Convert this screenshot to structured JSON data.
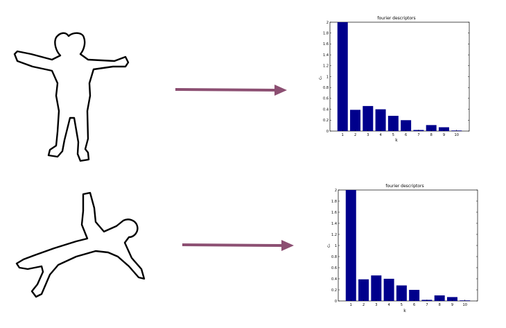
{
  "colors": {
    "background": "#ffffff",
    "arrow": "#8c4f72",
    "bar": "#00008c",
    "outline": "#000000"
  },
  "figures": {
    "top": {
      "icon": "human-silhouette-upright-outline"
    },
    "bottom": {
      "icon": "human-silhouette-rotated-outline"
    }
  },
  "chart_data": [
    {
      "type": "bar",
      "title": "fourier descriptors",
      "xlabel": "k",
      "ylabel": "cₖ",
      "categories": [
        "1",
        "2",
        "3",
        "4",
        "5",
        "6",
        "7",
        "8",
        "9",
        "10"
      ],
      "values": [
        2.0,
        0.39,
        0.46,
        0.4,
        0.28,
        0.2,
        0.02,
        0.11,
        0.07,
        0.01
      ],
      "ylim": [
        0,
        2
      ],
      "yticks": [
        "0",
        "0.2",
        "0.4",
        "0.6",
        "0.8",
        "1",
        "1.2",
        "1.4",
        "1.6",
        "1.8",
        "2"
      ],
      "grid": false,
      "legend": "none"
    },
    {
      "type": "bar",
      "title": "fourier descriptors",
      "xlabel": "k",
      "ylabel": "cₖ",
      "categories": [
        "1",
        "2",
        "3",
        "4",
        "5",
        "6",
        "7",
        "8",
        "9",
        "10"
      ],
      "values": [
        2.0,
        0.39,
        0.46,
        0.4,
        0.28,
        0.2,
        0.02,
        0.1,
        0.07,
        0.01
      ],
      "ylim": [
        0,
        2
      ],
      "yticks": [
        "0",
        "0.2",
        "0.4",
        "0.6",
        "0.8",
        "1",
        "1.2",
        "1.4",
        "1.6",
        "1.8",
        "2"
      ],
      "grid": false,
      "legend": "none"
    }
  ]
}
